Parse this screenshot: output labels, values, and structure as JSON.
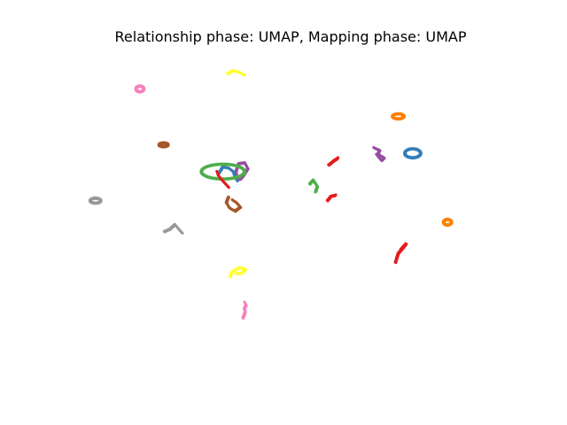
{
  "chart_data": {
    "type": "scatter",
    "title": "Relationship phase: UMAP, Mapping phase: UMAP",
    "xlabel": "",
    "ylabel": "",
    "xlim": [
      0,
      10
    ],
    "ylim": [
      0,
      10
    ],
    "axes_visible": false,
    "grid": false,
    "legend": "none",
    "marker_size": 1.5,
    "series": [
      {
        "color": "#f781bf",
        "shape": "ellipse",
        "center": [
          1.57,
          8.85
        ],
        "radii": [
          0.1,
          0.1
        ],
        "points": 30
      },
      {
        "color": "#f781bf",
        "shape": "path",
        "points_xy": [
          [
            3.91,
            1.85
          ],
          [
            3.93,
            1.92
          ],
          [
            3.96,
            2.03
          ],
          [
            3.94,
            2.14
          ],
          [
            3.98,
            2.24
          ],
          [
            3.95,
            2.33
          ]
        ]
      },
      {
        "color": "#ffff33",
        "shape": "path",
        "points_xy": [
          [
            3.56,
            9.33
          ],
          [
            3.68,
            9.42
          ],
          [
            3.82,
            9.37
          ],
          [
            3.95,
            9.28
          ]
        ]
      },
      {
        "color": "#ffff33",
        "shape": "path",
        "points_xy": [
          [
            3.62,
            3.11
          ],
          [
            3.66,
            3.26
          ],
          [
            3.83,
            3.39
          ],
          [
            3.97,
            3.34
          ],
          [
            3.88,
            3.22
          ],
          [
            3.75,
            3.2
          ]
        ]
      },
      {
        "color": "#ff7f00",
        "shape": "ellipse",
        "center": [
          7.45,
          8.01
        ],
        "radii": [
          0.14,
          0.09
        ],
        "points": 30
      },
      {
        "color": "#ff7f00",
        "shape": "ellipse",
        "center": [
          8.57,
          4.77
        ],
        "radii": [
          0.1,
          0.1
        ],
        "points": 26
      },
      {
        "color": "#a65628",
        "shape": "ellipse",
        "center": [
          2.11,
          7.14
        ],
        "radii": [
          0.11,
          0.07
        ],
        "points": 28
      },
      {
        "color": "#a65628",
        "shape": "path",
        "points_xy": [
          [
            3.58,
            5.55
          ],
          [
            3.53,
            5.38
          ],
          [
            3.6,
            5.22
          ],
          [
            3.73,
            5.12
          ],
          [
            3.85,
            5.24
          ],
          [
            3.76,
            5.38
          ],
          [
            3.67,
            5.46
          ]
        ]
      },
      {
        "color": "#999999",
        "shape": "ellipse",
        "center": [
          0.56,
          5.43
        ],
        "radii": [
          0.13,
          0.09
        ],
        "points": 30
      },
      {
        "color": "#999999",
        "shape": "path",
        "points_xy": [
          [
            2.12,
            4.49
          ],
          [
            2.25,
            4.57
          ],
          [
            2.36,
            4.71
          ],
          [
            2.46,
            4.55
          ],
          [
            2.54,
            4.43
          ]
        ]
      },
      {
        "color": "#984ea3",
        "shape": "path",
        "points_xy": [
          [
            6.89,
            7.06
          ],
          [
            7.02,
            6.98
          ],
          [
            6.98,
            6.87
          ],
          [
            7.12,
            6.75
          ],
          [
            7.06,
            6.67
          ],
          [
            6.95,
            6.85
          ]
        ]
      },
      {
        "color": "#984ea3",
        "shape": "path",
        "points_xy": [
          [
            3.77,
            6.1
          ],
          [
            3.75,
            6.33
          ],
          [
            3.81,
            6.57
          ],
          [
            3.95,
            6.6
          ],
          [
            4.02,
            6.42
          ],
          [
            3.92,
            6.21
          ],
          [
            3.83,
            6.07
          ]
        ]
      },
      {
        "color": "#377eb8",
        "shape": "ellipse",
        "center": [
          7.78,
          6.88
        ],
        "radii": [
          0.19,
          0.15
        ],
        "points": 36
      },
      {
        "color": "#377eb8",
        "shape": "path",
        "points_xy": [
          [
            3.37,
            6.3
          ],
          [
            3.45,
            6.47
          ],
          [
            3.58,
            6.44
          ],
          [
            3.69,
            6.33
          ],
          [
            3.73,
            6.15
          ],
          [
            3.79,
            6.03
          ]
        ]
      },
      {
        "color": "#4daf4a",
        "shape": "ellipse",
        "center": [
          3.46,
          6.32
        ],
        "radii": [
          0.5,
          0.24
        ],
        "points": 60
      },
      {
        "color": "#4daf4a",
        "shape": "path",
        "points_xy": [
          [
            5.43,
            5.95
          ],
          [
            5.51,
            6.07
          ],
          [
            5.6,
            5.88
          ],
          [
            5.56,
            5.69
          ]
        ]
      },
      {
        "color": "#e41a1c",
        "shape": "path",
        "points_xy": [
          [
            3.58,
            5.85
          ],
          [
            3.5,
            5.97
          ],
          [
            3.42,
            6.09
          ],
          [
            3.35,
            6.21
          ],
          [
            3.32,
            6.33
          ]
        ]
      },
      {
        "color": "#e41a1c",
        "shape": "path",
        "points_xy": [
          [
            5.86,
            6.53
          ],
          [
            5.98,
            6.66
          ],
          [
            6.08,
            6.75
          ]
        ]
      },
      {
        "color": "#e41a1c",
        "shape": "path",
        "points_xy": [
          [
            5.83,
            5.44
          ],
          [
            5.91,
            5.57
          ],
          [
            6.03,
            5.61
          ]
        ]
      },
      {
        "color": "#e41a1c",
        "shape": "path",
        "points_xy": [
          [
            7.38,
            3.55
          ],
          [
            7.44,
            3.82
          ],
          [
            7.56,
            4.01
          ],
          [
            7.62,
            4.12
          ],
          [
            7.5,
            3.94
          ]
        ]
      }
    ]
  }
}
